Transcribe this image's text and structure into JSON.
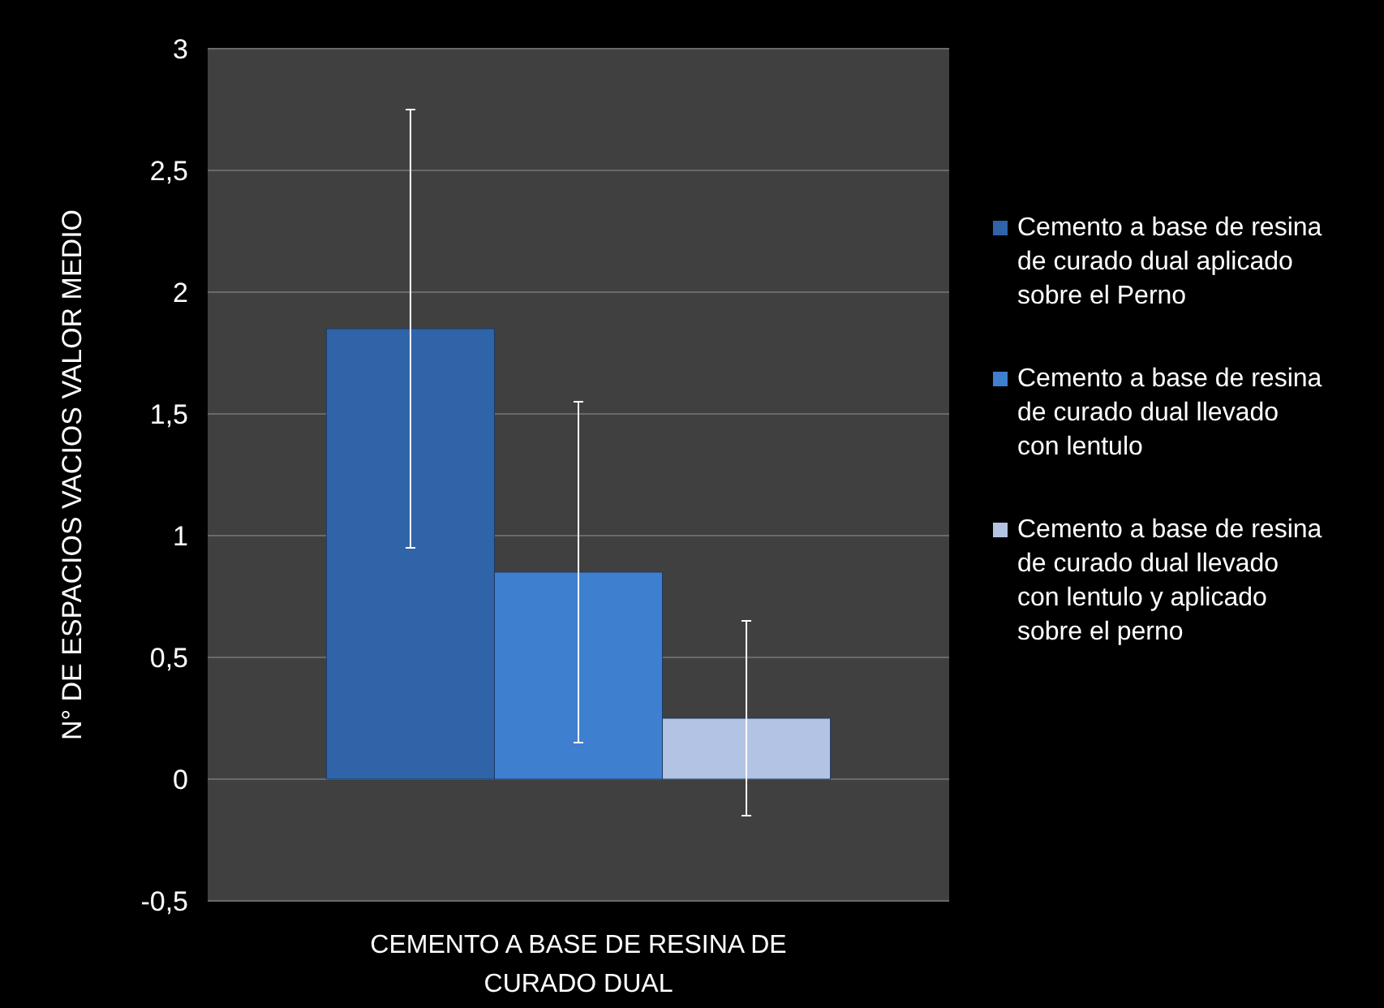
{
  "chart_data": {
    "type": "bar",
    "ylabel": "N° DE ESPACIOS VACIOS VALOR MEDIO",
    "categories": [
      "CEMENTO A BASE DE RESINA DE CURADO DUAL"
    ],
    "series": [
      {
        "name": "Cemento a base de resina de curado dual aplicado sobre el Perno",
        "color": "#2f64a8",
        "values": [
          1.85
        ],
        "errors": [
          0.9
        ]
      },
      {
        "name": "Cemento a base de resina de curado dual llevado con lentulo",
        "color": "#3f7fcf",
        "values": [
          0.85
        ],
        "errors": [
          0.7
        ]
      },
      {
        "name": "Cemento a base de resina de curado dual llevado con lentulo y aplicado sobre el perno",
        "color": "#b3c3e3",
        "values": [
          0.25
        ],
        "errors": [
          0.4
        ]
      }
    ],
    "ylim": [
      -0.5,
      3
    ],
    "yticks": [
      {
        "value": -0.5,
        "label": "-0,5"
      },
      0,
      {
        "value": 0.5,
        "label": "0,5"
      },
      1,
      {
        "value": 1.5,
        "label": "1,5"
      },
      2,
      {
        "value": 2.5,
        "label": "2,5"
      },
      3
    ],
    "grid": "y",
    "legend": "right"
  }
}
